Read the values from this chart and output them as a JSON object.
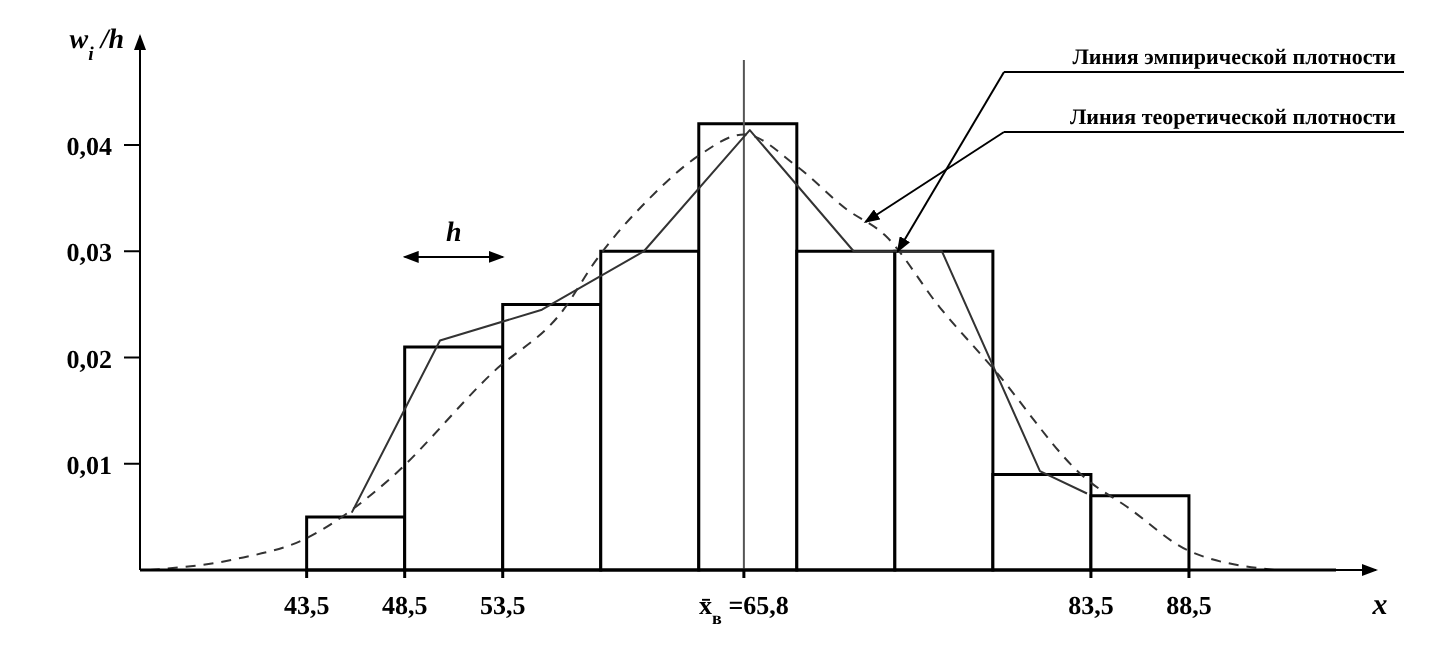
{
  "chart_data": {
    "type": "histogram",
    "xlabel": "x",
    "ylabel": "w$_{i}$/h",
    "xlim": [
      35,
      96
    ],
    "ylim": [
      0,
      0.048
    ],
    "xticks": [
      {
        "value": 43.5,
        "label": "43,5"
      },
      {
        "value": 48.5,
        "label": "48,5"
      },
      {
        "value": 53.5,
        "label": "53,5"
      },
      {
        "value": 65.8,
        "label": "x̄$_{в}$ =65,8"
      },
      {
        "value": 83.5,
        "label": "83,5"
      },
      {
        "value": 88.5,
        "label": "88,5"
      }
    ],
    "yticks": [
      {
        "value": 0.01,
        "label": "0,01"
      },
      {
        "value": 0.02,
        "label": "0,02"
      },
      {
        "value": 0.03,
        "label": "0,03"
      },
      {
        "value": 0.04,
        "label": "0,04"
      }
    ],
    "grid": false,
    "legend": false,
    "ref_lines": [
      {
        "axis": "x",
        "value": 65.8,
        "color": "#555555"
      }
    ],
    "series": [
      {
        "color": "#ffffff",
        "bins": [
          43.5,
          48.5,
          53.5,
          58.5,
          63.5,
          68.5,
          73.5,
          78.5,
          83.5,
          88.5
        ],
        "values": [
          0.005,
          0.021,
          0.025,
          0.03,
          0.042,
          0.03,
          0.03,
          0.009,
          0.007
        ]
      },
      {
        "type": "line",
        "color": "#333333",
        "line_style": "solid",
        "x": [
          45.8,
          50.3,
          55.5,
          60.7,
          66.1,
          71.4,
          75.9,
          80.9,
          83.3
        ],
        "values": [
          0.0054,
          0.0216,
          0.0245,
          0.03,
          0.0414,
          0.03,
          0.03,
          0.0093,
          0.0072
        ]
      },
      {
        "type": "line",
        "color": "#333333",
        "line_style": "dashed",
        "x": [
          35.5,
          39.8,
          43.5,
          46.4,
          47.7,
          53,
          56.6,
          58.2,
          61,
          63.5,
          65.8,
          68.5,
          71,
          73,
          75.8,
          78.5,
          83.3,
          85.3,
          88.5,
          92.9
        ],
        "values": [
          0,
          0.001,
          0.003,
          0.0065,
          0.0085,
          0.0186,
          0.0245,
          0.029,
          0.035,
          0.039,
          0.041,
          0.038,
          0.034,
          0.0315,
          0.0247,
          0.019,
          0.0085,
          0.006,
          0.0018,
          0
        ]
      }
    ],
    "annotations": [
      "Линия эмпирической плотности",
      "Линия теоретической плотности",
      "h"
    ]
  }
}
